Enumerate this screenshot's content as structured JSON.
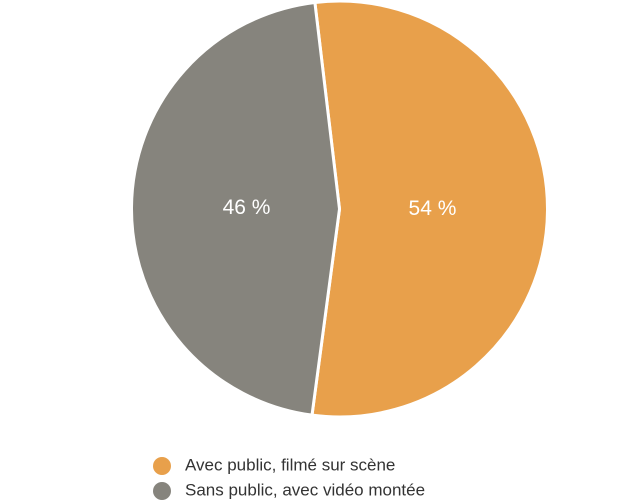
{
  "chart_data": {
    "type": "pie",
    "categories": [
      "Avec public, filmé sur scène",
      "Sans public, avec vidéo montée"
    ],
    "values": [
      54,
      46
    ],
    "value_labels": [
      "54 %",
      "46 %"
    ],
    "colors": [
      "#e8a04b",
      "#86847d"
    ]
  }
}
